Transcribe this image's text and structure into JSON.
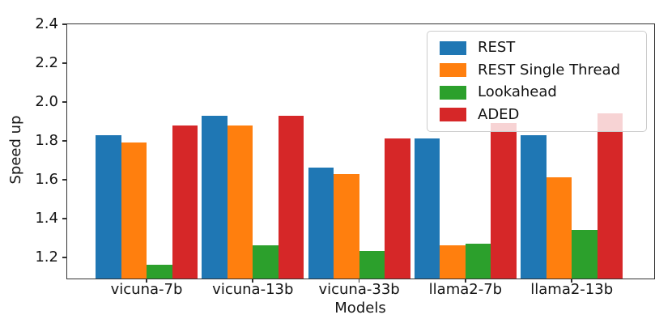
{
  "chart_data": {
    "type": "bar",
    "title": "",
    "xlabel": "Models",
    "ylabel": "Speed up",
    "categories": [
      "vicuna-7b",
      "vicuna-13b",
      "vicuna-33b",
      "llama2-7b",
      "llama2-13b"
    ],
    "series": [
      {
        "name": "REST",
        "color": "#1f77b4",
        "values": [
          1.83,
          1.93,
          1.66,
          1.81,
          1.83
        ]
      },
      {
        "name": "REST Single Thread",
        "color": "#ff7f0e",
        "values": [
          1.79,
          1.88,
          1.63,
          1.26,
          1.61
        ]
      },
      {
        "name": "Lookahead",
        "color": "#2ca02c",
        "values": [
          1.16,
          1.26,
          1.23,
          1.27,
          1.34
        ]
      },
      {
        "name": "ADED",
        "color": "#d62728",
        "values": [
          1.88,
          1.93,
          1.81,
          1.89,
          1.94
        ]
      }
    ],
    "ylim": [
      1.09,
      2.4
    ],
    "yticks": [
      "1.2",
      "1.4",
      "1.6",
      "1.8",
      "2.0",
      "2.2",
      "2.4"
    ],
    "grid": false,
    "legend_position": "upper right",
    "legend_opacity": 0.8
  }
}
